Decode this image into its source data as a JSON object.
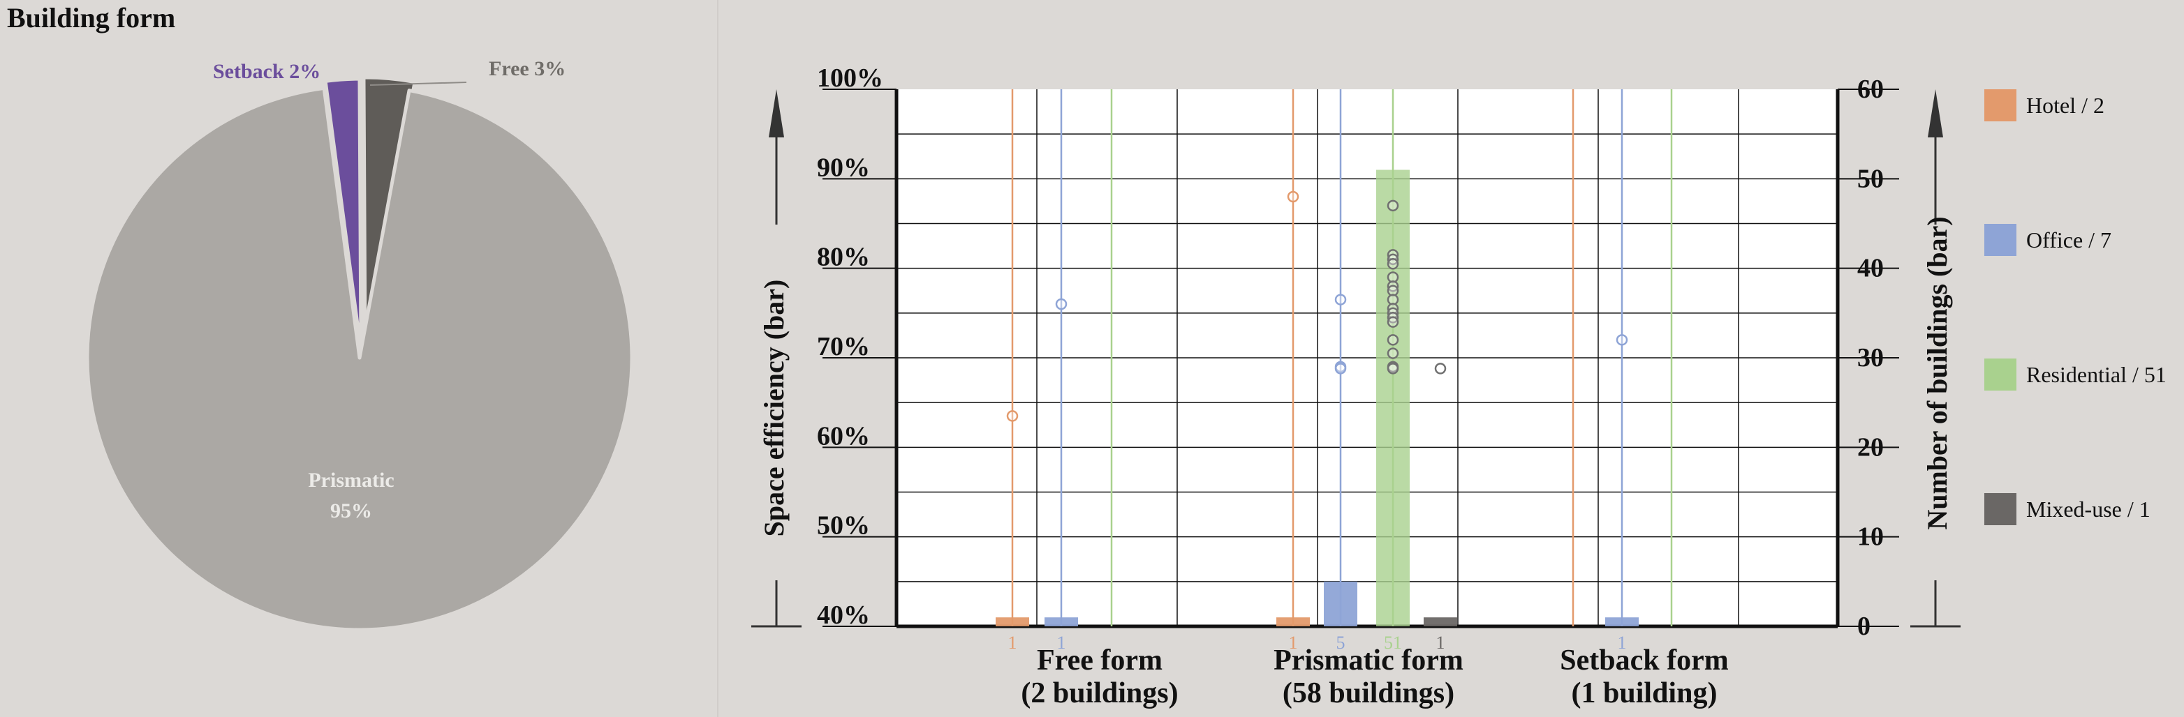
{
  "title": "Building form",
  "colors": {
    "background": "#dcd9d6",
    "prismatic": "#aba8a4",
    "setback": "#6b4e9c",
    "free": "#5f5c58",
    "hotel": "#e39a6c",
    "office": "#8ea4d6",
    "residential": "#a9d18e",
    "mixed_use": "#6a6765"
  },
  "chart_data": [
    {
      "type": "pie",
      "title": "Building form",
      "slices": [
        {
          "label": "Setback",
          "pct_label": "2%",
          "value": 2,
          "color": "#6b4e9c"
        },
        {
          "label": "Free",
          "pct_label": "3%",
          "value": 3,
          "color": "#5f5c58"
        },
        {
          "label": "Prismatic",
          "pct_label": "95%",
          "value": 95,
          "color": "#aba8a4"
        }
      ]
    },
    {
      "type": "bar",
      "ylabel_left": "Space efficiency (bar)",
      "ylabel_right": "Number of buildings (bar)",
      "ylim_left": [
        40,
        100
      ],
      "ylim_right": [
        0,
        60
      ],
      "yticks_left": [
        "40%",
        "50%",
        "60%",
        "70%",
        "80%",
        "90%",
        "100%"
      ],
      "yticks_right": [
        "0",
        "10",
        "20",
        "30",
        "40",
        "50",
        "60"
      ],
      "grid": true,
      "legend_position": "right",
      "legend": [
        {
          "label": "Hotel / 2",
          "color": "#e39a6c"
        },
        {
          "label": "Office / 7",
          "color": "#8ea4d6"
        },
        {
          "label": "Residential / 51",
          "color": "#a9d18e"
        },
        {
          "label": "Mixed-use / 1",
          "color": "#6a6765"
        }
      ],
      "groups": [
        {
          "label_line1": "Free form",
          "label_line2": "(2 buildings)",
          "bars": [
            {
              "type": "Hotel",
              "count": 1,
              "count_label": "1",
              "efficiency_points": [
                63.5
              ]
            },
            {
              "type": "Office",
              "count": 1,
              "count_label": "1",
              "efficiency_points": [
                76
              ]
            },
            {
              "type": "Residential",
              "count": 0,
              "count_label": "",
              "efficiency_points": []
            }
          ]
        },
        {
          "label_line1": "Prismatic form",
          "label_line2": "(58 buildings)",
          "bars": [
            {
              "type": "Hotel",
              "count": 1,
              "count_label": "1",
              "efficiency_points": [
                88
              ]
            },
            {
              "type": "Office",
              "count": 5,
              "count_label": "5",
              "efficiency_points": [
                76.5,
                69,
                68.8
              ]
            },
            {
              "type": "Residential",
              "count": 51,
              "count_label": "51",
              "efficiency_points": [
                87,
                81.5,
                81,
                80.5,
                79,
                78,
                77.5,
                76.5,
                75.5,
                75,
                74.5,
                74,
                72,
                70.5,
                69,
                68.8
              ]
            },
            {
              "type": "Mixed-use",
              "count": 1,
              "count_label": "1",
              "efficiency_points": [
                68.8
              ]
            }
          ]
        },
        {
          "label_line1": "Setback form",
          "label_line2": "(1 building)",
          "bars": [
            {
              "type": "Hotel",
              "count": 0,
              "count_label": "",
              "efficiency_points": []
            },
            {
              "type": "Office",
              "count": 1,
              "count_label": "1",
              "efficiency_points": [
                72
              ]
            },
            {
              "type": "Residential",
              "count": 0,
              "count_label": "",
              "efficiency_points": []
            }
          ]
        }
      ]
    }
  ]
}
